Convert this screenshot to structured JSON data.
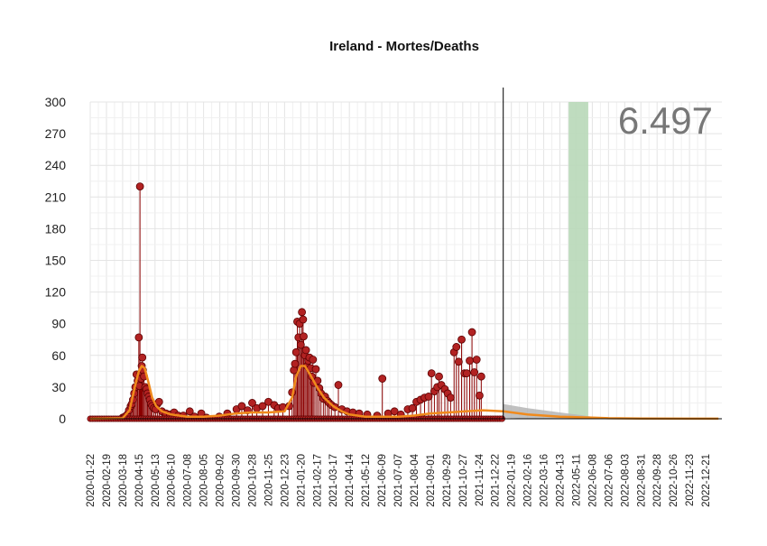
{
  "chart_data": {
    "type": "line",
    "title": "Ireland - Mortes/Deaths",
    "xlabel": "",
    "ylabel": "",
    "big_number": "6.497",
    "ylim": [
      0,
      300
    ],
    "y_ticks": [
      "0",
      "30",
      "60",
      "90",
      "120",
      "150",
      "180",
      "210",
      "240",
      "270",
      "300"
    ],
    "x_range": [
      "2020-01-22",
      "2023-01-18"
    ],
    "x_ticks": [
      "2020-01-22",
      "2020-02-19",
      "2020-03-18",
      "2020-04-15",
      "2020-05-13",
      "2020-06-10",
      "2020-07-08",
      "2020-08-05",
      "2020-09-02",
      "2020-09-30",
      "2020-10-28",
      "2020-11-25",
      "2020-12-23",
      "2021-01-20",
      "2021-02-17",
      "2021-03-17",
      "2021-04-14",
      "2021-05-12",
      "2021-06-09",
      "2021-07-07",
      "2021-08-04",
      "2021-09-01",
      "2021-09-29",
      "2021-10-27",
      "2021-11-24",
      "2021-12-22",
      "2022-01-19",
      "2022-02-16",
      "2022-03-16",
      "2022-04-13",
      "2022-05-11",
      "2022-06-08",
      "2022-07-06",
      "2022-08-03",
      "2022-08-31",
      "2022-09-28",
      "2022-10-26",
      "2022-11-23",
      "2022-12-21"
    ],
    "grid": true,
    "vline_date": "2022-01-05",
    "highlight_band": [
      "2022-04-28",
      "2022-06-01"
    ],
    "colors": {
      "points": "#b22222",
      "stems": "#8b0000",
      "smooth": "#f08a1c",
      "forecast_band": "#b5b5b5",
      "highlight": "#b8d8b8",
      "big_number": "#777777",
      "grid": "#e4e4e4"
    },
    "series": [
      {
        "kind": "daily",
        "points": [
          [
            "2020-03-18",
            1
          ],
          [
            "2020-03-22",
            2
          ],
          [
            "2020-03-26",
            4
          ],
          [
            "2020-03-29",
            8
          ],
          [
            "2020-04-01",
            12
          ],
          [
            "2020-04-03",
            14
          ],
          [
            "2020-04-05",
            18
          ],
          [
            "2020-04-07",
            24
          ],
          [
            "2020-04-09",
            30
          ],
          [
            "2020-04-11",
            42
          ],
          [
            "2020-04-13",
            36
          ],
          [
            "2020-04-15",
            77
          ],
          [
            "2020-04-16",
            31
          ],
          [
            "2020-04-17",
            220
          ],
          [
            "2020-04-18",
            43
          ],
          [
            "2020-04-19",
            38
          ],
          [
            "2020-04-20",
            50
          ],
          [
            "2020-04-21",
            58
          ],
          [
            "2020-04-22",
            46
          ],
          [
            "2020-04-24",
            40
          ],
          [
            "2020-04-26",
            30
          ],
          [
            "2020-04-28",
            28
          ],
          [
            "2020-04-30",
            24
          ],
          [
            "2020-05-02",
            21
          ],
          [
            "2020-05-04",
            18
          ],
          [
            "2020-05-06",
            14
          ],
          [
            "2020-05-08",
            12
          ],
          [
            "2020-05-11",
            10
          ],
          [
            "2020-05-14",
            9
          ],
          [
            "2020-05-17",
            14
          ],
          [
            "2020-05-20",
            16
          ],
          [
            "2020-05-25",
            7
          ],
          [
            "2020-06-01",
            5
          ],
          [
            "2020-06-08",
            4
          ],
          [
            "2020-06-15",
            6
          ],
          [
            "2020-06-22",
            3
          ],
          [
            "2020-07-01",
            3
          ],
          [
            "2020-07-12",
            7
          ],
          [
            "2020-07-20",
            2
          ],
          [
            "2020-08-01",
            5
          ],
          [
            "2020-08-10",
            1
          ],
          [
            "2020-09-01",
            2
          ],
          [
            "2020-09-15",
            5
          ],
          [
            "2020-10-01",
            9
          ],
          [
            "2020-10-10",
            12
          ],
          [
            "2020-10-20",
            8
          ],
          [
            "2020-10-28",
            15
          ],
          [
            "2020-11-05",
            10
          ],
          [
            "2020-11-15",
            12
          ],
          [
            "2020-11-25",
            16
          ],
          [
            "2020-12-05",
            13
          ],
          [
            "2020-12-12",
            10
          ],
          [
            "2020-12-20",
            11
          ],
          [
            "2020-12-31",
            12
          ],
          [
            "2021-01-05",
            25
          ],
          [
            "2021-01-08",
            46
          ],
          [
            "2021-01-10",
            52
          ],
          [
            "2021-01-12",
            63
          ],
          [
            "2021-01-14",
            92
          ],
          [
            "2021-01-16",
            77
          ],
          [
            "2021-01-18",
            90
          ],
          [
            "2021-01-20",
            70
          ],
          [
            "2021-01-22",
            101
          ],
          [
            "2021-01-24",
            94
          ],
          [
            "2021-01-25",
            78
          ],
          [
            "2021-01-27",
            60
          ],
          [
            "2021-01-29",
            65
          ],
          [
            "2021-01-31",
            50
          ],
          [
            "2021-02-02",
            55
          ],
          [
            "2021-02-04",
            58
          ],
          [
            "2021-02-06",
            48
          ],
          [
            "2021-02-08",
            40
          ],
          [
            "2021-02-10",
            56
          ],
          [
            "2021-02-12",
            34
          ],
          [
            "2021-02-15",
            47
          ],
          [
            "2021-02-18",
            36
          ],
          [
            "2021-02-21",
            29
          ],
          [
            "2021-02-24",
            24
          ],
          [
            "2021-02-28",
            19
          ],
          [
            "2021-03-03",
            21
          ],
          [
            "2021-03-07",
            17
          ],
          [
            "2021-03-10",
            15
          ],
          [
            "2021-03-14",
            13
          ],
          [
            "2021-03-20",
            11
          ],
          [
            "2021-03-26",
            32
          ],
          [
            "2021-04-01",
            9
          ],
          [
            "2021-04-10",
            7
          ],
          [
            "2021-04-20",
            6
          ],
          [
            "2021-05-01",
            5
          ],
          [
            "2021-05-15",
            4
          ],
          [
            "2021-06-01",
            3
          ],
          [
            "2021-06-10",
            38
          ],
          [
            "2021-06-20",
            5
          ],
          [
            "2021-07-01",
            7
          ],
          [
            "2021-07-12",
            4
          ],
          [
            "2021-07-24",
            9
          ],
          [
            "2021-08-01",
            10
          ],
          [
            "2021-08-08",
            16
          ],
          [
            "2021-08-15",
            18
          ],
          [
            "2021-08-22",
            20
          ],
          [
            "2021-08-29",
            21
          ],
          [
            "2021-09-03",
            43
          ],
          [
            "2021-09-08",
            26
          ],
          [
            "2021-09-13",
            30
          ],
          [
            "2021-09-16",
            40
          ],
          [
            "2021-09-20",
            32
          ],
          [
            "2021-09-26",
            28
          ],
          [
            "2021-10-01",
            24
          ],
          [
            "2021-10-06",
            20
          ],
          [
            "2021-10-12",
            63
          ],
          [
            "2021-10-16",
            68
          ],
          [
            "2021-10-20",
            54
          ],
          [
            "2021-10-25",
            75
          ],
          [
            "2021-10-30",
            43
          ],
          [
            "2021-11-03",
            43
          ],
          [
            "2021-11-08",
            55
          ],
          [
            "2021-11-12",
            82
          ],
          [
            "2021-11-16",
            44
          ],
          [
            "2021-11-20",
            56
          ],
          [
            "2021-11-25",
            22
          ],
          [
            "2021-11-28",
            40
          ]
        ]
      },
      {
        "kind": "smoothed",
        "points": [
          [
            "2020-01-22",
            0
          ],
          [
            "2020-03-18",
            0.5
          ],
          [
            "2020-03-30",
            8
          ],
          [
            "2020-04-08",
            30
          ],
          [
            "2020-04-15",
            45
          ],
          [
            "2020-04-20",
            50
          ],
          [
            "2020-04-25",
            48
          ],
          [
            "2020-05-01",
            36
          ],
          [
            "2020-05-08",
            20
          ],
          [
            "2020-05-15",
            12
          ],
          [
            "2020-05-25",
            7
          ],
          [
            "2020-06-10",
            4
          ],
          [
            "2020-07-08",
            2
          ],
          [
            "2020-08-05",
            2
          ],
          [
            "2020-09-02",
            3
          ],
          [
            "2020-09-30",
            5
          ],
          [
            "2020-10-28",
            6
          ],
          [
            "2020-11-25",
            6
          ],
          [
            "2020-12-23",
            7
          ],
          [
            "2021-01-05",
            20
          ],
          [
            "2021-01-12",
            40
          ],
          [
            "2021-01-20",
            50
          ],
          [
            "2021-01-27",
            50
          ],
          [
            "2021-02-05",
            42
          ],
          [
            "2021-02-17",
            30
          ],
          [
            "2021-03-01",
            20
          ],
          [
            "2021-03-17",
            12
          ],
          [
            "2021-04-01",
            7
          ],
          [
            "2021-04-14",
            4
          ],
          [
            "2021-05-12",
            2
          ],
          [
            "2021-06-09",
            2
          ],
          [
            "2021-07-07",
            2
          ],
          [
            "2021-08-04",
            3
          ],
          [
            "2021-09-01",
            5
          ],
          [
            "2021-10-01",
            6
          ],
          [
            "2021-11-01",
            7
          ],
          [
            "2021-12-01",
            8
          ],
          [
            "2022-01-05",
            7
          ],
          [
            "2022-02-16",
            4
          ],
          [
            "2022-03-16",
            3
          ],
          [
            "2022-04-13",
            2
          ],
          [
            "2022-05-11",
            1.5
          ],
          [
            "2022-06-08",
            1
          ],
          [
            "2022-07-06",
            0.5
          ],
          [
            "2022-08-31",
            0.2
          ],
          [
            "2022-11-23",
            0.1
          ],
          [
            "2023-01-12",
            0.1
          ]
        ]
      }
    ],
    "forecast": [
      [
        "2022-01-05",
        14,
        1
      ],
      [
        "2022-02-16",
        10,
        0
      ],
      [
        "2022-03-16",
        8,
        0
      ],
      [
        "2022-04-13",
        6,
        0
      ],
      [
        "2022-05-11",
        4,
        0
      ],
      [
        "2022-06-08",
        2,
        0
      ],
      [
        "2022-07-06",
        1,
        0
      ],
      [
        "2022-08-03",
        0.5,
        0
      ],
      [
        "2022-10-01",
        0.3,
        0
      ],
      [
        "2023-01-12",
        0.2,
        0
      ]
    ]
  }
}
